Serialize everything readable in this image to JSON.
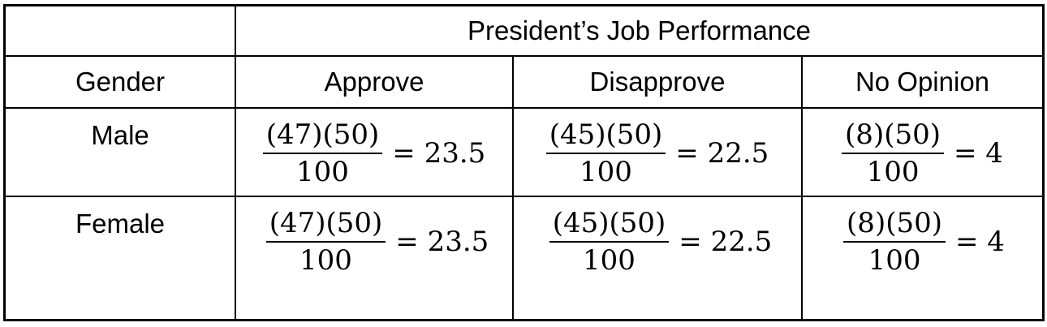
{
  "table": {
    "header_group": "President’s Job Performance",
    "columns": [
      "Gender",
      "Approve",
      "Disapprove",
      "No Opinion"
    ],
    "rows": [
      {
        "gender": "Male",
        "cells": [
          {
            "numerator": "(47)(50)",
            "denominator": "100",
            "result": "= 23.5"
          },
          {
            "numerator": "(45)(50)",
            "denominator": "100",
            "result": "= 22.5"
          },
          {
            "numerator": "(8)(50)",
            "denominator": "100",
            "result": "= 4"
          }
        ]
      },
      {
        "gender": "Female",
        "cells": [
          {
            "numerator": "(47)(50)",
            "denominator": "100",
            "result": "= 23.5"
          },
          {
            "numerator": "(45)(50)",
            "denominator": "100",
            "result": "= 22.5"
          },
          {
            "numerator": "(8)(50)",
            "denominator": "100",
            "result": "= 4"
          }
        ]
      }
    ]
  }
}
